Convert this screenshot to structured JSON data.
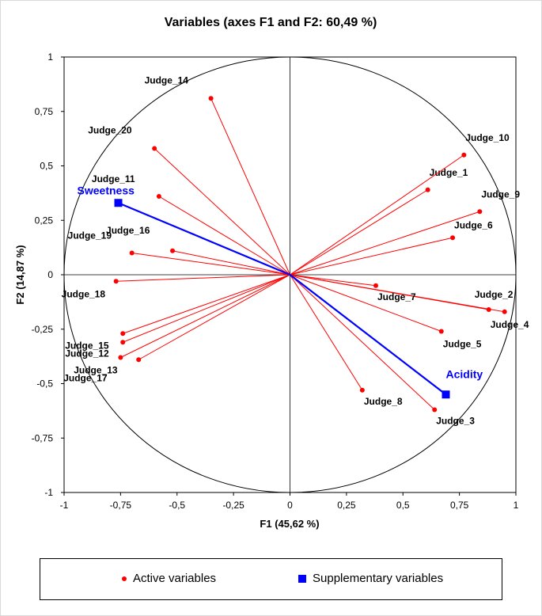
{
  "chart_data": {
    "type": "scatter",
    "title": "Variables (axes F1 and F2: 60,49 %)",
    "xlabel": "F1 (45,62 %)",
    "ylabel": "F2 (14,87 %)",
    "xlim": [
      -1,
      1
    ],
    "ylim": [
      -1,
      1
    ],
    "xticks": [
      "-1",
      "-0,75",
      "-0,5",
      "-0,25",
      "0",
      "0,25",
      "0,5",
      "0,75",
      "1"
    ],
    "yticks": [
      "1",
      "0,75",
      "0,5",
      "0,25",
      "0",
      "-0,25",
      "-0,5",
      "-0,75",
      "-1"
    ],
    "correlation_circle": true,
    "series": [
      {
        "name": "Active variables",
        "color": "#ff0000",
        "marker": "circle",
        "points": [
          {
            "label": "Judge_1",
            "x": 0.61,
            "y": 0.39
          },
          {
            "label": "Judge_2",
            "x": 0.88,
            "y": -0.16
          },
          {
            "label": "Judge_3",
            "x": 0.64,
            "y": -0.62
          },
          {
            "label": "Judge_4",
            "x": 0.95,
            "y": -0.17
          },
          {
            "label": "Judge_5",
            "x": 0.67,
            "y": -0.26
          },
          {
            "label": "Judge_6",
            "x": 0.72,
            "y": 0.17
          },
          {
            "label": "Judge_7",
            "x": 0.38,
            "y": -0.05
          },
          {
            "label": "Judge_8",
            "x": 0.32,
            "y": -0.53
          },
          {
            "label": "Judge_9",
            "x": 0.84,
            "y": 0.29
          },
          {
            "label": "Judge_10",
            "x": 0.77,
            "y": 0.55
          },
          {
            "label": "Judge_11",
            "x": -0.58,
            "y": 0.36
          },
          {
            "label": "Judge_12",
            "x": -0.75,
            "y": -0.38
          },
          {
            "label": "Judge_13",
            "x": -0.67,
            "y": -0.39
          },
          {
            "label": "Judge_14",
            "x": -0.35,
            "y": 0.81
          },
          {
            "label": "Judge_15",
            "x": -0.74,
            "y": -0.27
          },
          {
            "label": "Judge_16",
            "x": -0.52,
            "y": 0.11
          },
          {
            "label": "Judge_17",
            "x": -0.74,
            "y": -0.31
          },
          {
            "label": "Judge_18",
            "x": -0.77,
            "y": -0.03
          },
          {
            "label": "Judge_19",
            "x": -0.7,
            "y": 0.1
          },
          {
            "label": "Judge_20",
            "x": -0.6,
            "y": 0.58
          }
        ]
      },
      {
        "name": "Supplementary variables",
        "color": "#0000ff",
        "marker": "square",
        "points": [
          {
            "label": "Sweetness",
            "x": -0.76,
            "y": 0.33
          },
          {
            "label": "Acidity",
            "x": 0.69,
            "y": -0.55
          }
        ]
      }
    ],
    "legend": {
      "position": "bottom",
      "items": [
        "Active variables",
        "Supplementary variables"
      ]
    }
  }
}
